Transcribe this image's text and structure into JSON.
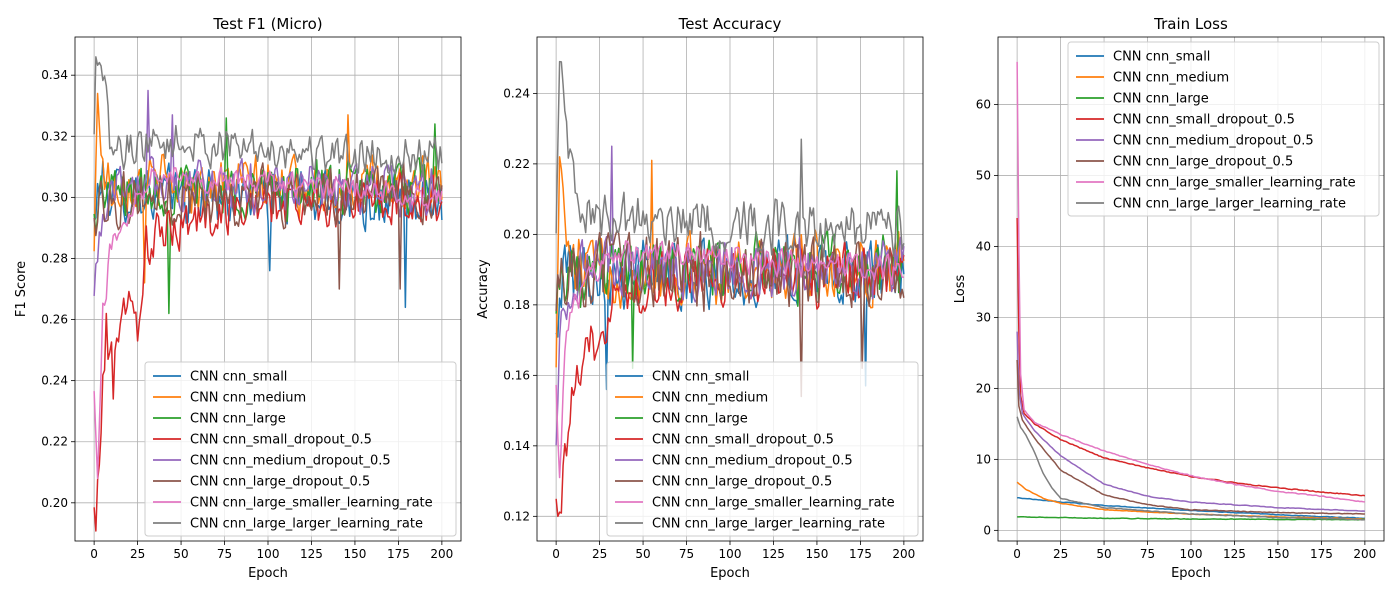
{
  "figure": {
    "series_names": [
      "CNN cnn_small",
      "CNN cnn_medium",
      "CNN cnn_large",
      "CNN cnn_small_dropout_0.5",
      "CNN cnn_medium_dropout_0.5",
      "CNN cnn_large_dropout_0.5",
      "CNN cnn_large_smaller_learning_rate",
      "CNN cnn_large_larger_learning_rate"
    ],
    "colors": [
      "#1f77b4",
      "#ff7f0e",
      "#2ca02c",
      "#d62728",
      "#9467bd",
      "#8c564b",
      "#e377c2",
      "#7f7f7f"
    ]
  },
  "chart_data": [
    {
      "type": "line",
      "title": "Test F1 (Micro)",
      "xlabel": "Epoch",
      "ylabel": "F1 Score",
      "xlim": [
        -11,
        211
      ],
      "ylim": [
        0.1875,
        0.3525
      ],
      "xticks": [
        0,
        25,
        50,
        75,
        100,
        125,
        150,
        175,
        200
      ],
      "yticks": [
        0.2,
        0.22,
        0.24,
        0.26,
        0.28,
        0.3,
        0.32,
        0.34
      ],
      "ytick_labels": [
        "0.20",
        "0.22",
        "0.24",
        "0.26",
        "0.28",
        "0.30",
        "0.32",
        "0.34"
      ],
      "grid": true,
      "legend": "lower-right",
      "x": "epochs 0-200 (201 points per series)",
      "series": [
        {
          "name": "CNN cnn_small",
          "anchors": [
            [
              0,
              0.29
            ],
            [
              3,
              0.305
            ],
            [
              10,
              0.302
            ],
            [
              200,
              0.298
            ]
          ],
          "noise": 0.011,
          "spikes": [
            [
              179,
              0.264
            ],
            [
              101,
              0.276
            ]
          ]
        },
        {
          "name": "CNN cnn_medium",
          "anchors": [
            [
              0,
              0.28
            ],
            [
              2,
              0.334
            ],
            [
              6,
              0.305
            ],
            [
              200,
              0.303
            ]
          ],
          "noise": 0.011,
          "spikes": [
            [
              2,
              0.334
            ],
            [
              29,
              0.272
            ],
            [
              146,
              0.327
            ]
          ]
        },
        {
          "name": "CNN cnn_large",
          "anchors": [
            [
              0,
              0.292
            ],
            [
              5,
              0.302
            ],
            [
              200,
              0.303
            ]
          ],
          "noise": 0.011,
          "spikes": [
            [
              43,
              0.262
            ],
            [
              76,
              0.326
            ],
            [
              196,
              0.324
            ]
          ]
        },
        {
          "name": "CNN cnn_small_dropout_0.5",
          "anchors": [
            [
              0,
              0.196
            ],
            [
              1,
              0.191
            ],
            [
              3,
              0.215
            ],
            [
              6,
              0.245
            ],
            [
              10,
              0.25
            ],
            [
              18,
              0.265
            ],
            [
              24,
              0.258
            ],
            [
              30,
              0.283
            ],
            [
              45,
              0.29
            ],
            [
              80,
              0.297
            ],
            [
              200,
              0.299
            ]
          ],
          "noise": 0.01,
          "spikes": [
            [
              7,
              0.262
            ],
            [
              11,
              0.234
            ],
            [
              25,
              0.253
            ]
          ]
        },
        {
          "name": "CNN cnn_medium_dropout_0.5",
          "anchors": [
            [
              0,
              0.265
            ],
            [
              3,
              0.29
            ],
            [
              10,
              0.305
            ],
            [
              200,
              0.302
            ]
          ],
          "noise": 0.01,
          "spikes": [
            [
              31,
              0.335
            ],
            [
              45,
              0.327
            ]
          ]
        },
        {
          "name": "CNN cnn_large_dropout_0.5",
          "anchors": [
            [
              0,
              0.29
            ],
            [
              5,
              0.3
            ],
            [
              200,
              0.301
            ]
          ],
          "noise": 0.011,
          "spikes": [
            [
              141,
              0.27
            ],
            [
              176,
              0.27
            ]
          ]
        },
        {
          "name": "CNN cnn_large_smaller_learning_rate",
          "anchors": [
            [
              0,
              0.235
            ],
            [
              2,
              0.208
            ],
            [
              5,
              0.262
            ],
            [
              10,
              0.285
            ],
            [
              25,
              0.3
            ],
            [
              35,
              0.31
            ],
            [
              60,
              0.306
            ],
            [
              120,
              0.304
            ],
            [
              200,
              0.3
            ]
          ],
          "noise": 0.005,
          "spikes": [
            [
              2,
              0.208
            ]
          ]
        },
        {
          "name": "CNN cnn_large_larger_learning_rate",
          "anchors": [
            [
              0,
              0.318
            ],
            [
              1,
              0.346
            ],
            [
              4,
              0.343
            ],
            [
              10,
              0.315
            ],
            [
              30,
              0.318
            ],
            [
              200,
              0.313
            ]
          ],
          "noise": 0.008,
          "spikes": [
            [
              1,
              0.346
            ],
            [
              4,
              0.343
            ]
          ]
        }
      ]
    },
    {
      "type": "line",
      "title": "Test Accuracy",
      "xlabel": "Epoch",
      "ylabel": "Accuracy",
      "xlim": [
        -11,
        211
      ],
      "ylim": [
        0.113,
        0.256
      ],
      "xticks": [
        0,
        25,
        50,
        75,
        100,
        125,
        150,
        175,
        200
      ],
      "yticks": [
        0.12,
        0.14,
        0.16,
        0.18,
        0.2,
        0.22,
        0.24
      ],
      "ytick_labels": [
        "0.12",
        "0.14",
        "0.16",
        "0.18",
        "0.20",
        "0.22",
        "0.24"
      ],
      "grid": true,
      "legend": "lower-right",
      "x": "epochs 0-200 (201 points per series)",
      "series": [
        {
          "name": "CNN cnn_small",
          "anchors": [
            [
              0,
              0.18
            ],
            [
              5,
              0.19
            ],
            [
              200,
              0.188
            ]
          ],
          "noise": 0.012,
          "spikes": [
            [
              29,
              0.156
            ],
            [
              178,
              0.157
            ]
          ]
        },
        {
          "name": "CNN cnn_medium",
          "anchors": [
            [
              0,
              0.17
            ],
            [
              2,
              0.222
            ],
            [
              8,
              0.19
            ],
            [
              200,
              0.19
            ]
          ],
          "noise": 0.012,
          "spikes": [
            [
              2,
              0.222
            ],
            [
              55,
              0.221
            ]
          ]
        },
        {
          "name": "CNN cnn_large",
          "anchors": [
            [
              0,
              0.185
            ],
            [
              5,
              0.19
            ],
            [
              200,
              0.19
            ]
          ],
          "noise": 0.012,
          "spikes": [
            [
              44,
              0.162
            ],
            [
              196,
              0.218
            ]
          ]
        },
        {
          "name": "CNN cnn_small_dropout_0.5",
          "anchors": [
            [
              0,
              0.131
            ],
            [
              1,
              0.12
            ],
            [
              3,
              0.125
            ],
            [
              8,
              0.15
            ],
            [
              15,
              0.16
            ],
            [
              25,
              0.175
            ],
            [
              40,
              0.185
            ],
            [
              80,
              0.188
            ],
            [
              200,
              0.189
            ]
          ],
          "noise": 0.01,
          "spikes": [
            [
              1,
              0.12
            ]
          ]
        },
        {
          "name": "CNN cnn_medium_dropout_0.5",
          "anchors": [
            [
              0,
              0.146
            ],
            [
              3,
              0.175
            ],
            [
              10,
              0.19
            ],
            [
              200,
              0.19
            ]
          ],
          "noise": 0.01,
          "spikes": [
            [
              32,
              0.225
            ]
          ]
        },
        {
          "name": "CNN cnn_large_dropout_0.5",
          "anchors": [
            [
              0,
              0.185
            ],
            [
              5,
              0.19
            ],
            [
              200,
              0.189
            ]
          ],
          "noise": 0.012,
          "spikes": [
            [
              141,
              0.154
            ],
            [
              176,
              0.162
            ]
          ]
        },
        {
          "name": "CNN cnn_large_smaller_learning_rate",
          "anchors": [
            [
              0,
              0.16
            ],
            [
              2,
              0.131
            ],
            [
              6,
              0.175
            ],
            [
              15,
              0.185
            ],
            [
              35,
              0.195
            ],
            [
              200,
              0.19
            ]
          ],
          "noise": 0.005,
          "spikes": [
            [
              2,
              0.131
            ]
          ]
        },
        {
          "name": "CNN cnn_large_larger_learning_rate",
          "anchors": [
            [
              0,
              0.205
            ],
            [
              2,
              0.249
            ],
            [
              6,
              0.232
            ],
            [
              15,
              0.205
            ],
            [
              200,
              0.2
            ]
          ],
          "noise": 0.009,
          "spikes": [
            [
              2,
              0.249
            ],
            [
              6,
              0.232
            ],
            [
              141,
              0.227
            ]
          ]
        }
      ]
    },
    {
      "type": "line",
      "title": "Train Loss",
      "xlabel": "Epoch",
      "ylabel": "Loss",
      "xlim": [
        -11,
        211
      ],
      "ylim": [
        -1.5,
        69.5
      ],
      "xticks": [
        0,
        25,
        50,
        75,
        100,
        125,
        150,
        175,
        200
      ],
      "yticks": [
        0,
        10,
        20,
        30,
        40,
        50,
        60
      ],
      "ytick_labels": [
        "0",
        "10",
        "20",
        "30",
        "40",
        "50",
        "60"
      ],
      "grid": true,
      "legend": "upper-right",
      "x": "epochs 0-200 (201 points per series)",
      "series": [
        {
          "name": "CNN cnn_small",
          "anchors": [
            [
              0,
              4.6
            ],
            [
              25,
              4.0
            ],
            [
              50,
              3.5
            ],
            [
              100,
              2.8
            ],
            [
              150,
              2.2
            ],
            [
              200,
              1.7
            ]
          ],
          "noise": 0.05
        },
        {
          "name": "CNN cnn_medium",
          "anchors": [
            [
              0,
              6.8
            ],
            [
              5,
              5.8
            ],
            [
              15,
              4.5
            ],
            [
              25,
              3.8
            ],
            [
              50,
              2.9
            ],
            [
              100,
              2.3
            ],
            [
              150,
              1.9
            ],
            [
              200,
              1.6
            ]
          ],
          "noise": 0.05
        },
        {
          "name": "CNN cnn_large",
          "anchors": [
            [
              0,
              1.9
            ],
            [
              50,
              1.7
            ],
            [
              100,
              1.6
            ],
            [
              200,
              1.5
            ]
          ],
          "noise": 0.05
        },
        {
          "name": "CNN cnn_small_dropout_0.5",
          "anchors": [
            [
              0,
              44.0
            ],
            [
              1,
              28.0
            ],
            [
              2,
              19.0
            ],
            [
              4,
              16.5
            ],
            [
              10,
              15.0
            ],
            [
              25,
              12.8
            ],
            [
              50,
              10.2
            ],
            [
              75,
              8.8
            ],
            [
              100,
              7.6
            ],
            [
              125,
              6.7
            ],
            [
              150,
              6.0
            ],
            [
              175,
              5.4
            ],
            [
              200,
              4.9
            ]
          ],
          "noise": 0.08
        },
        {
          "name": "CNN cnn_medium_dropout_0.5",
          "anchors": [
            [
              0,
              28.0
            ],
            [
              1,
              20.0
            ],
            [
              3,
              16.5
            ],
            [
              10,
              14.0
            ],
            [
              25,
              10.5
            ],
            [
              50,
              6.5
            ],
            [
              75,
              4.8
            ],
            [
              100,
              4.0
            ],
            [
              150,
              3.2
            ],
            [
              200,
              2.7
            ]
          ],
          "noise": 0.06
        },
        {
          "name": "CNN cnn_large_dropout_0.5",
          "anchors": [
            [
              0,
              24.0
            ],
            [
              1,
              17.5
            ],
            [
              3,
              15.5
            ],
            [
              10,
              13.0
            ],
            [
              25,
              8.5
            ],
            [
              50,
              5.0
            ],
            [
              75,
              3.6
            ],
            [
              100,
              2.9
            ],
            [
              150,
              2.5
            ],
            [
              200,
              2.3
            ]
          ],
          "noise": 0.06
        },
        {
          "name": "CNN cnn_large_smaller_learning_rate",
          "anchors": [
            [
              0,
              66.0
            ],
            [
              1,
              40.0
            ],
            [
              2,
              22.0
            ],
            [
              4,
              17.0
            ],
            [
              10,
              15.2
            ],
            [
              25,
              13.5
            ],
            [
              50,
              11.2
            ],
            [
              75,
              9.3
            ],
            [
              100,
              7.7
            ],
            [
              125,
              6.5
            ],
            [
              150,
              5.5
            ],
            [
              175,
              4.8
            ],
            [
              200,
              4.0
            ]
          ],
          "noise": 0.08
        },
        {
          "name": "CNN cnn_large_larger_learning_rate",
          "anchors": [
            [
              0,
              16.0
            ],
            [
              2,
              14.5
            ],
            [
              5,
              13.5
            ],
            [
              10,
              11.0
            ],
            [
              15,
              8.0
            ],
            [
              20,
              6.0
            ],
            [
              25,
              4.5
            ],
            [
              50,
              3.2
            ],
            [
              100,
              2.3
            ],
            [
              150,
              1.8
            ],
            [
              200,
              1.5
            ]
          ],
          "noise": 0.06
        }
      ]
    }
  ]
}
